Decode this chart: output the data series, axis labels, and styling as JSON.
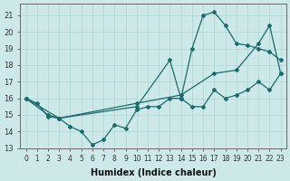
{
  "xlabel": "Humidex (Indice chaleur)",
  "ylabel": "",
  "xlim": [
    -0.5,
    23.5
  ],
  "ylim": [
    13,
    21.7
  ],
  "xticks": [
    0,
    1,
    2,
    3,
    4,
    5,
    6,
    7,
    8,
    9,
    10,
    11,
    12,
    13,
    14,
    15,
    16,
    17,
    18,
    19,
    20,
    21,
    22,
    23
  ],
  "yticks": [
    13,
    14,
    15,
    16,
    17,
    18,
    19,
    20,
    21
  ],
  "background_color": "#cce8e8",
  "grid_color": "#add4d4",
  "line_color": "#1a6b6b",
  "series": [
    {
      "x": [
        0,
        1,
        2,
        3,
        4,
        5,
        6,
        7,
        8,
        9,
        10,
        11,
        12,
        13,
        14,
        15,
        16,
        17,
        18,
        19,
        20,
        21,
        22,
        23
      ],
      "y": [
        16.0,
        15.7,
        14.9,
        14.8,
        14.3,
        14.0,
        13.2,
        13.5,
        14.4,
        14.2,
        15.3,
        15.5,
        15.5,
        16.0,
        16.0,
        15.5,
        15.5,
        16.5,
        16.0,
        16.2,
        16.5,
        17.0,
        16.5,
        17.5
      ]
    },
    {
      "x": [
        0,
        2,
        3,
        10,
        13,
        14,
        15,
        16,
        17,
        18,
        19,
        20,
        21,
        22,
        23
      ],
      "y": [
        16.0,
        15.0,
        14.8,
        15.5,
        18.3,
        16.0,
        19.0,
        21.0,
        21.2,
        20.4,
        19.3,
        19.2,
        19.0,
        18.8,
        18.3
      ]
    },
    {
      "x": [
        0,
        3,
        10,
        14,
        17,
        19,
        21,
        22,
        23
      ],
      "y": [
        16.0,
        14.8,
        15.7,
        16.2,
        17.5,
        17.7,
        19.3,
        20.4,
        17.5
      ]
    }
  ]
}
